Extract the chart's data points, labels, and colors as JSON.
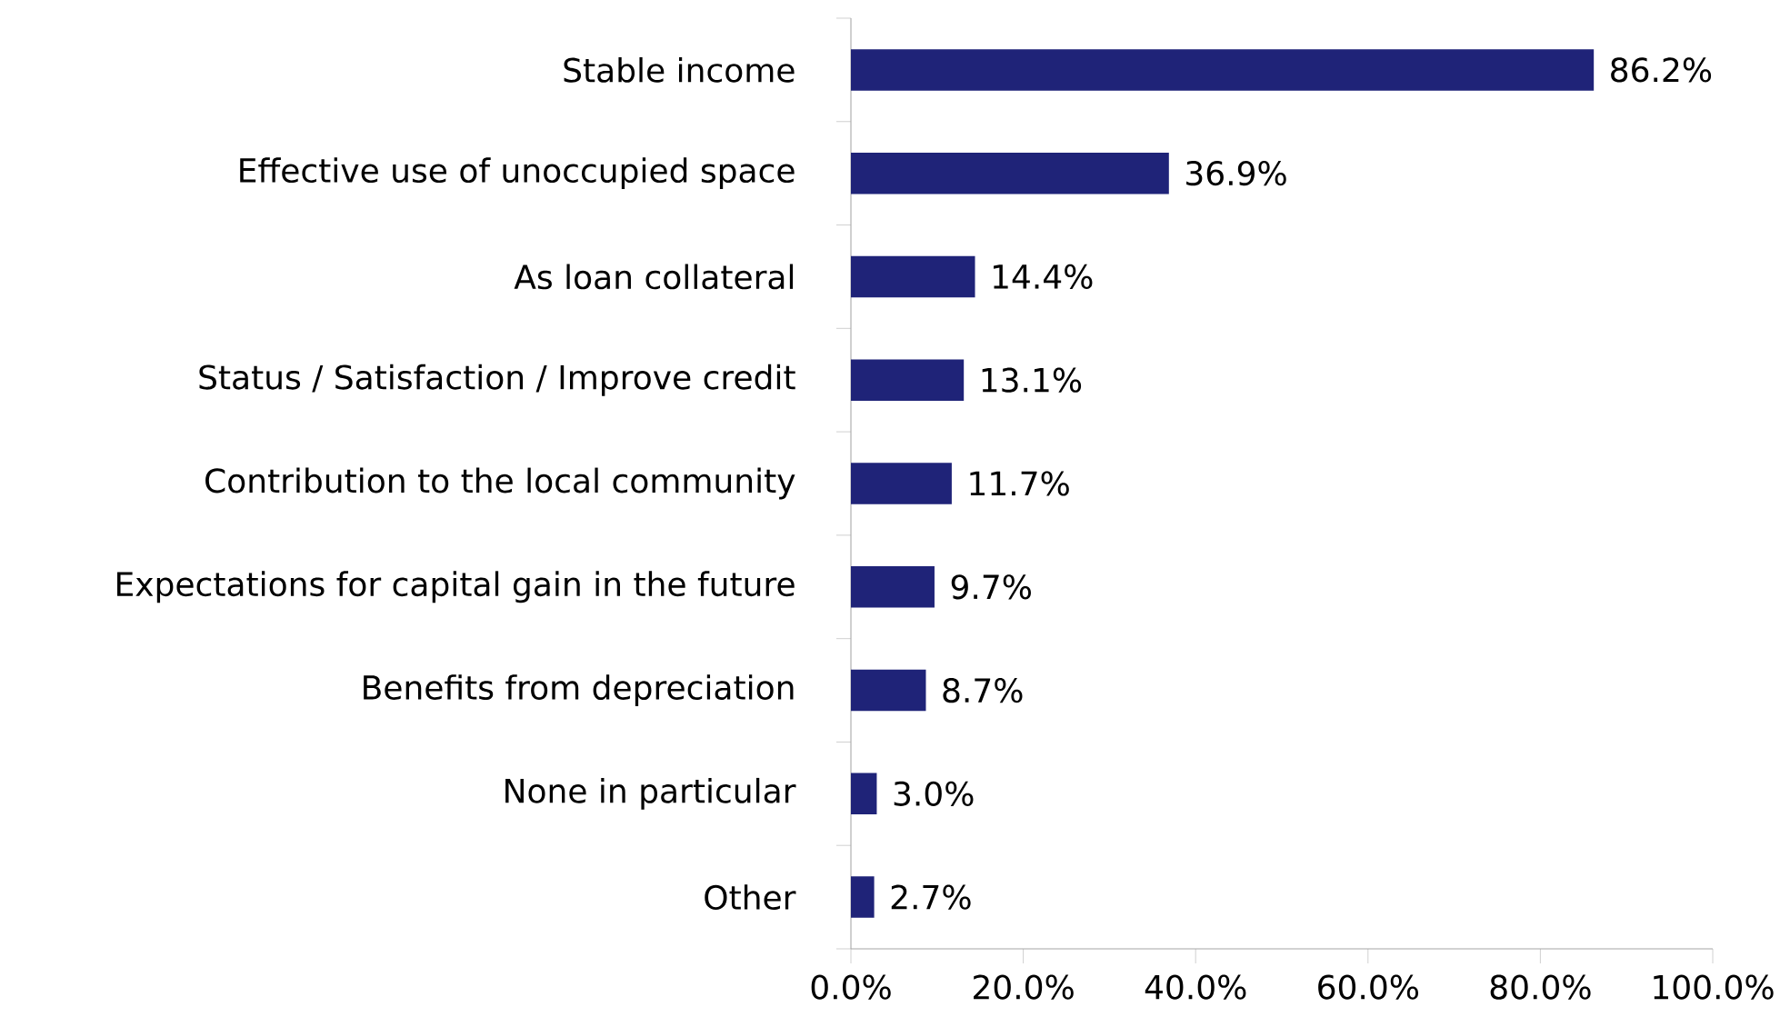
{
  "chart_data": {
    "type": "bar",
    "orientation": "horizontal",
    "categories": [
      "Stable income",
      "Effective use of unoccupied space",
      "As loan collateral",
      "Status / Satisfaction / Improve credit",
      "Contribution to the local community",
      "Expectations for capital gain in the future",
      "Benefits from depreciation",
      "None in particular",
      "Other"
    ],
    "values": [
      86.2,
      36.9,
      14.4,
      13.1,
      11.7,
      9.7,
      8.7,
      3.0,
      2.7
    ],
    "value_labels": [
      "86.2%",
      "36.9%",
      "14.4%",
      "13.1%",
      "11.7%",
      "9.7%",
      "8.7%",
      "3.0%",
      "2.7%"
    ],
    "color": "#1f2378",
    "xlim": [
      0,
      100
    ],
    "xticks": [
      {
        "value": 0,
        "label": "0.0%"
      },
      {
        "value": 20,
        "label": "20.0%"
      },
      {
        "value": 40,
        "label": "40.0%"
      },
      {
        "value": 60,
        "label": "60.0%"
      },
      {
        "value": 80,
        "label": "80.0%"
      },
      {
        "value": 100,
        "label": "100.0%"
      }
    ],
    "grid": false
  }
}
